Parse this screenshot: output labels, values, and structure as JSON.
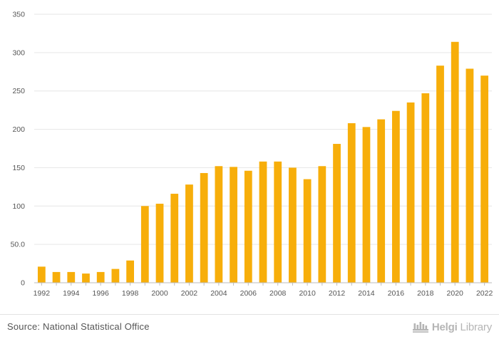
{
  "chart_data": {
    "type": "bar",
    "categories": [
      "1992",
      "1993",
      "1994",
      "1995",
      "1996",
      "1997",
      "1998",
      "1999",
      "2000",
      "2001",
      "2002",
      "2003",
      "2004",
      "2005",
      "2006",
      "2007",
      "2008",
      "2009",
      "2010",
      "2011",
      "2012",
      "2013",
      "2014",
      "2015",
      "2016",
      "2017",
      "2018",
      "2019",
      "2020",
      "2021",
      "2022"
    ],
    "values": [
      21,
      14,
      14,
      12,
      14,
      18,
      29,
      100,
      103,
      116,
      128,
      143,
      152,
      151,
      146,
      158,
      158,
      150,
      135,
      152,
      181,
      208,
      203,
      213,
      224,
      235,
      247,
      283,
      314,
      279,
      270
    ],
    "x_tick_labels": [
      "1992",
      "1994",
      "1996",
      "1998",
      "2000",
      "2002",
      "2004",
      "2006",
      "2008",
      "2010",
      "2012",
      "2014",
      "2016",
      "2018",
      "2020",
      "2022"
    ],
    "y_ticks": [
      0,
      50,
      100,
      150,
      200,
      250,
      300,
      350
    ],
    "y_tick_labels": [
      "0",
      "50.0",
      "100",
      "150",
      "200",
      "250",
      "300",
      "350"
    ],
    "ylim": [
      0,
      350
    ],
    "title": "",
    "xlabel": "",
    "ylabel": "",
    "grid": true,
    "bar_color": "#f7ae0a",
    "grid_color": "#e6e6e6",
    "axis_color": "#bdbdbd"
  },
  "footer": {
    "source": "Source: National Statistical Office",
    "brand_part1": "Helgi",
    "brand_part2": "Library",
    "brand_icon": "helgilibrary-logo-icon"
  }
}
